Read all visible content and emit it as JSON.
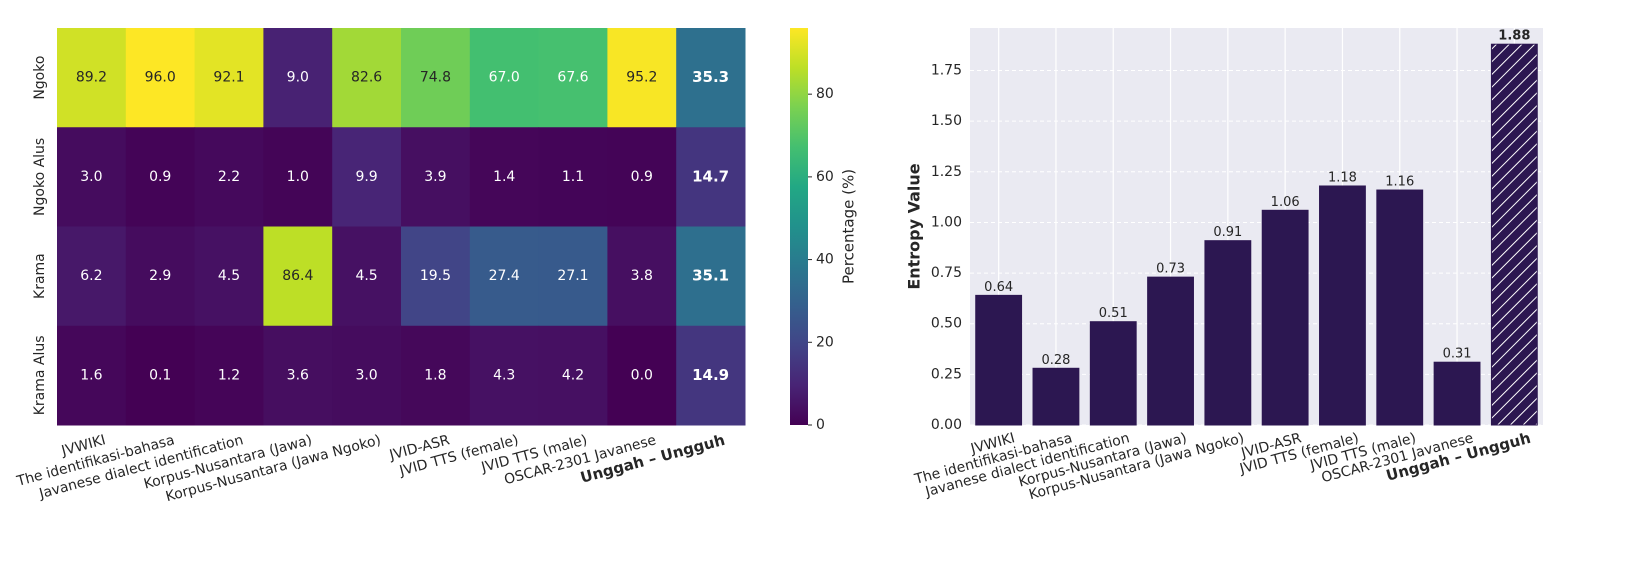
{
  "chart_data": [
    {
      "type": "heatmap",
      "rows": [
        "Ngoko",
        "Ngoko Alus",
        "Krama",
        "Krama Alus"
      ],
      "categories": [
        "JVWIKI",
        "The identifikasi-bahasa",
        "Javanese dialect identification",
        "Korpus-Nusantara (Jawa)",
        "Korpus-Nusantara (Jawa Ngoko)",
        "JVID-ASR",
        "JVID TTS (female)",
        "JVID TTS (male)",
        "OSCAR-2301 Javanese",
        "Unggah – Ungguh"
      ],
      "values": [
        [
          89.2,
          96.0,
          92.1,
          9.0,
          82.6,
          74.8,
          67.0,
          67.6,
          95.2,
          35.3
        ],
        [
          3.0,
          0.9,
          2.2,
          1.0,
          9.9,
          3.9,
          1.4,
          1.1,
          0.9,
          14.7
        ],
        [
          6.2,
          2.9,
          4.5,
          86.4,
          4.5,
          19.5,
          27.4,
          27.1,
          3.8,
          35.1
        ],
        [
          1.6,
          0.1,
          1.2,
          3.6,
          3.0,
          1.8,
          4.3,
          4.2,
          0.0,
          14.9
        ]
      ],
      "value_labels": [
        [
          "89.2",
          "96.0",
          "92.1",
          "9.0",
          "82.6",
          "74.8",
          "67.0",
          "67.6",
          "95.2",
          "35.3"
        ],
        [
          "3.0",
          "0.9",
          "2.2",
          "1.0",
          "9.9",
          "3.9",
          "1.4",
          "1.1",
          "0.9",
          "14.7"
        ],
        [
          "6.2",
          "2.9",
          "4.5",
          "86.4",
          "4.5",
          "19.5",
          "27.4",
          "27.1",
          "3.8",
          "35.1"
        ],
        [
          "1.6",
          "0.1",
          "1.2",
          "3.6",
          "3.0",
          "1.8",
          "4.3",
          "4.2",
          "0.0",
          "14.9"
        ]
      ],
      "colormap": "viridis",
      "colorbar_label": "Percentage (%)",
      "colorbar_lim": [
        0,
        96
      ],
      "colorbar_ticks": [
        0,
        20,
        40,
        60,
        80
      ],
      "bold_index": 9
    },
    {
      "type": "bar",
      "categories": [
        "JVWIKI",
        "The identifikasi-bahasa",
        "Javanese dialect identification",
        "Korpus-Nusantara (Jawa)",
        "Korpus-Nusantara (Jawa Ngoko)",
        "JVID-ASR",
        "JVID TTS (female)",
        "JVID TTS (male)",
        "OSCAR-2301 Javanese",
        "Unggah – Ungguh"
      ],
      "values": [
        0.64,
        0.28,
        0.51,
        0.73,
        0.91,
        1.06,
        1.18,
        1.16,
        0.31,
        1.88
      ],
      "color": "#2c1751",
      "ylabel": "Entropy Value",
      "ylim": [
        0,
        1.96
      ],
      "yticks": [
        {
          "value": 0,
          "label": "0.00"
        },
        {
          "value": 0.25,
          "label": "0.25"
        },
        {
          "value": 0.5,
          "label": "0.50"
        },
        {
          "value": 0.75,
          "label": "0.75"
        },
        {
          "value": 1,
          "label": "1.00"
        },
        {
          "value": 1.25,
          "label": "1.25"
        },
        {
          "value": 1.5,
          "label": "1.50"
        },
        {
          "value": 1.75,
          "label": "1.75"
        }
      ],
      "grid": true,
      "hatch_index": 9,
      "bold_index": 9
    }
  ]
}
